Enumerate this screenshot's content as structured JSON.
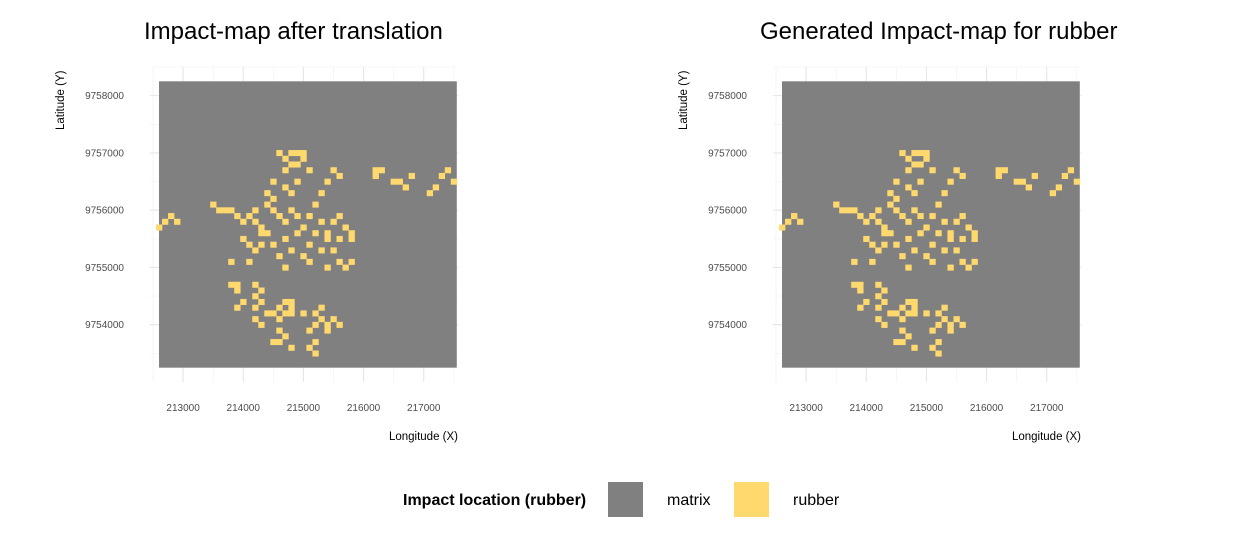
{
  "chart_data": [
    {
      "type": "heatmap",
      "title": "Impact-map after translation",
      "xlabel": "Longitude (X)",
      "ylabel": "Latitude (Y)",
      "xlim": [
        212450,
        217570
      ],
      "ylim": [
        9753000,
        9758500
      ],
      "x_ticks": [
        213000,
        214000,
        215000,
        216000,
        217000
      ],
      "y_ticks": [
        9754000,
        9755000,
        9756000,
        9757000,
        9758000
      ],
      "grid": true,
      "raster_extent": {
        "x": [
          212600,
          217550
        ],
        "y": [
          9753250,
          9758250
        ]
      },
      "cell_size": 100,
      "background_class": "matrix",
      "cells_class": "rubber",
      "cells": [
        [
          215000,
          9757000
        ],
        [
          214900,
          9757000
        ],
        [
          214800,
          9757000
        ],
        [
          214600,
          9757000
        ],
        [
          214700,
          9756900
        ],
        [
          215000,
          9756900
        ],
        [
          214800,
          9756800
        ],
        [
          214900,
          9756800
        ],
        [
          214700,
          9756700
        ],
        [
          215100,
          9756700
        ],
        [
          215500,
          9756700
        ],
        [
          215600,
          9756600
        ],
        [
          216200,
          9756700
        ],
        [
          216300,
          9756700
        ],
        [
          216200,
          9756600
        ],
        [
          216800,
          9756600
        ],
        [
          217400,
          9756700
        ],
        [
          217300,
          9756600
        ],
        [
          217500,
          9756500
        ],
        [
          216500,
          9756500
        ],
        [
          216700,
          9756400
        ],
        [
          217200,
          9756400
        ],
        [
          217100,
          9756300
        ],
        [
          216600,
          9756500
        ],
        [
          214500,
          9756500
        ],
        [
          214900,
          9756500
        ],
        [
          215400,
          9756500
        ],
        [
          215300,
          9756300
        ],
        [
          214400,
          9756300
        ],
        [
          214500,
          9756200
        ],
        [
          214700,
          9756400
        ],
        [
          214800,
          9756300
        ],
        [
          214400,
          9756100
        ],
        [
          214500,
          9756000
        ],
        [
          214600,
          9755900
        ],
        [
          214800,
          9756000
        ],
        [
          215200,
          9756100
        ],
        [
          215100,
          9755900
        ],
        [
          215600,
          9755900
        ],
        [
          215700,
          9755700
        ],
        [
          215800,
          9755600
        ],
        [
          215800,
          9755500
        ],
        [
          215600,
          9755500
        ],
        [
          215400,
          9755500
        ],
        [
          215200,
          9755600
        ],
        [
          215300,
          9755800
        ],
        [
          215000,
          9755700
        ],
        [
          214900,
          9755600
        ],
        [
          214700,
          9755500
        ],
        [
          214500,
          9755400
        ],
        [
          214300,
          9755400
        ],
        [
          214200,
          9755300
        ],
        [
          214100,
          9755100
        ],
        [
          214600,
          9755200
        ],
        [
          214800,
          9755300
        ],
        [
          215000,
          9755200
        ],
        [
          215500,
          9755300
        ],
        [
          215600,
          9755100
        ],
        [
          215800,
          9755100
        ],
        [
          215700,
          9755000
        ],
        [
          215400,
          9755000
        ],
        [
          215100,
          9755100
        ],
        [
          214700,
          9755000
        ],
        [
          214300,
          9755600
        ],
        [
          214200,
          9755800
        ],
        [
          214100,
          9755900
        ],
        [
          213800,
          9756000
        ],
        [
          213900,
          9755900
        ],
        [
          214000,
          9755800
        ],
        [
          214300,
          9755700
        ],
        [
          214400,
          9755600
        ],
        [
          214000,
          9755500
        ],
        [
          214100,
          9755400
        ],
        [
          213600,
          9756000
        ],
        [
          213500,
          9756100
        ],
        [
          212800,
          9755900
        ],
        [
          212900,
          9755800
        ],
        [
          212700,
          9755800
        ],
        [
          212600,
          9755700
        ],
        [
          213700,
          9756000
        ],
        [
          213800,
          9755100
        ],
        [
          214200,
          9756000
        ],
        [
          214900,
          9755900
        ],
        [
          215300,
          9755300
        ],
        [
          215500,
          9755800
        ],
        [
          214700,
          9755800
        ],
        [
          215100,
          9755400
        ],
        [
          215400,
          9755600
        ],
        [
          213800,
          9754700
        ],
        [
          213900,
          9754700
        ],
        [
          213900,
          9754600
        ],
        [
          214200,
          9754700
        ],
        [
          214300,
          9754600
        ],
        [
          214200,
          9754500
        ],
        [
          214300,
          9754400
        ],
        [
          214200,
          9754300
        ],
        [
          214000,
          9754400
        ],
        [
          213900,
          9754300
        ],
        [
          214700,
          9754400
        ],
        [
          214600,
          9754300
        ],
        [
          214800,
          9754400
        ],
        [
          214500,
          9754200
        ],
        [
          214600,
          9754100
        ],
        [
          214800,
          9754200
        ],
        [
          215000,
          9754200
        ],
        [
          215300,
          9754300
        ],
        [
          215200,
          9754200
        ],
        [
          215300,
          9754100
        ],
        [
          214300,
          9754000
        ],
        [
          214600,
          9753900
        ],
        [
          214700,
          9753800
        ],
        [
          214500,
          9753700
        ],
        [
          214800,
          9753600
        ],
        [
          215100,
          9753900
        ],
        [
          215200,
          9753700
        ],
        [
          215200,
          9753500
        ],
        [
          215100,
          9753600
        ],
        [
          215400,
          9753900
        ],
        [
          215400,
          9754000
        ],
        [
          215500,
          9754100
        ],
        [
          215600,
          9754000
        ],
        [
          214600,
          9753700
        ],
        [
          214400,
          9754200
        ],
        [
          214200,
          9754100
        ],
        [
          215200,
          9754000
        ],
        [
          214800,
          9754300
        ],
        [
          214700,
          9754200
        ]
      ]
    },
    {
      "type": "heatmap",
      "title": "Generated Impact-map for rubber",
      "xlabel": "Longitude (X)",
      "ylabel": "Latitude (Y)",
      "xlim": [
        212450,
        217570
      ],
      "ylim": [
        9753000,
        9758500
      ],
      "x_ticks": [
        213000,
        214000,
        215000,
        216000,
        217000
      ],
      "y_ticks": [
        9754000,
        9755000,
        9756000,
        9757000,
        9758000
      ],
      "grid": true,
      "raster_extent": {
        "x": [
          212600,
          217550
        ],
        "y": [
          9753250,
          9758250
        ]
      },
      "cell_size": 100,
      "background_class": "matrix",
      "cells_class": "rubber",
      "cells": [
        [
          215000,
          9757000
        ],
        [
          214900,
          9757000
        ],
        [
          214800,
          9757000
        ],
        [
          214600,
          9757000
        ],
        [
          214700,
          9756900
        ],
        [
          215000,
          9756900
        ],
        [
          214800,
          9756800
        ],
        [
          214900,
          9756800
        ],
        [
          214700,
          9756700
        ],
        [
          215100,
          9756700
        ],
        [
          215500,
          9756700
        ],
        [
          215600,
          9756600
        ],
        [
          216200,
          9756700
        ],
        [
          216300,
          9756700
        ],
        [
          216200,
          9756600
        ],
        [
          216800,
          9756600
        ],
        [
          217400,
          9756700
        ],
        [
          217300,
          9756600
        ],
        [
          217500,
          9756500
        ],
        [
          216500,
          9756500
        ],
        [
          216700,
          9756400
        ],
        [
          217200,
          9756400
        ],
        [
          217100,
          9756300
        ],
        [
          216600,
          9756500
        ],
        [
          214500,
          9756500
        ],
        [
          214900,
          9756500
        ],
        [
          215400,
          9756500
        ],
        [
          215300,
          9756300
        ],
        [
          214400,
          9756300
        ],
        [
          214500,
          9756200
        ],
        [
          214700,
          9756400
        ],
        [
          214800,
          9756300
        ],
        [
          214400,
          9756100
        ],
        [
          214500,
          9756000
        ],
        [
          214600,
          9755900
        ],
        [
          214800,
          9756000
        ],
        [
          215200,
          9756100
        ],
        [
          215100,
          9755900
        ],
        [
          215600,
          9755900
        ],
        [
          215700,
          9755700
        ],
        [
          215800,
          9755600
        ],
        [
          215800,
          9755500
        ],
        [
          215600,
          9755500
        ],
        [
          215400,
          9755500
        ],
        [
          215200,
          9755600
        ],
        [
          215300,
          9755800
        ],
        [
          215000,
          9755700
        ],
        [
          214900,
          9755600
        ],
        [
          214700,
          9755500
        ],
        [
          214500,
          9755400
        ],
        [
          214300,
          9755400
        ],
        [
          214200,
          9755300
        ],
        [
          214100,
          9755100
        ],
        [
          214600,
          9755200
        ],
        [
          214800,
          9755300
        ],
        [
          215000,
          9755200
        ],
        [
          215500,
          9755300
        ],
        [
          215600,
          9755100
        ],
        [
          215800,
          9755100
        ],
        [
          215700,
          9755000
        ],
        [
          215400,
          9755000
        ],
        [
          215100,
          9755100
        ],
        [
          214700,
          9755000
        ],
        [
          214300,
          9755600
        ],
        [
          214200,
          9755800
        ],
        [
          214100,
          9755900
        ],
        [
          213800,
          9756000
        ],
        [
          213900,
          9755900
        ],
        [
          214000,
          9755800
        ],
        [
          214300,
          9755700
        ],
        [
          214400,
          9755600
        ],
        [
          214000,
          9755500
        ],
        [
          214100,
          9755400
        ],
        [
          213600,
          9756000
        ],
        [
          213500,
          9756100
        ],
        [
          212800,
          9755900
        ],
        [
          212900,
          9755800
        ],
        [
          212700,
          9755800
        ],
        [
          212600,
          9755700
        ],
        [
          213700,
          9756000
        ],
        [
          213800,
          9755100
        ],
        [
          214200,
          9756000
        ],
        [
          214900,
          9755900
        ],
        [
          215300,
          9755300
        ],
        [
          215500,
          9755800
        ],
        [
          214700,
          9755800
        ],
        [
          215100,
          9755400
        ],
        [
          215400,
          9755600
        ],
        [
          213800,
          9754700
        ],
        [
          213900,
          9754700
        ],
        [
          213900,
          9754600
        ],
        [
          214200,
          9754700
        ],
        [
          214300,
          9754600
        ],
        [
          214200,
          9754500
        ],
        [
          214300,
          9754400
        ],
        [
          214200,
          9754300
        ],
        [
          214000,
          9754400
        ],
        [
          213900,
          9754300
        ],
        [
          214700,
          9754400
        ],
        [
          214600,
          9754300
        ],
        [
          214800,
          9754400
        ],
        [
          214500,
          9754200
        ],
        [
          214600,
          9754100
        ],
        [
          214800,
          9754200
        ],
        [
          215000,
          9754200
        ],
        [
          215300,
          9754300
        ],
        [
          215200,
          9754200
        ],
        [
          215300,
          9754100
        ],
        [
          214300,
          9754000
        ],
        [
          214600,
          9753900
        ],
        [
          214700,
          9753800
        ],
        [
          214500,
          9753700
        ],
        [
          214800,
          9753600
        ],
        [
          215100,
          9753900
        ],
        [
          215200,
          9753700
        ],
        [
          215200,
          9753500
        ],
        [
          215100,
          9753600
        ],
        [
          215400,
          9753900
        ],
        [
          215400,
          9754000
        ],
        [
          215500,
          9754100
        ],
        [
          215600,
          9754000
        ],
        [
          214600,
          9753700
        ],
        [
          214400,
          9754200
        ],
        [
          214200,
          9754100
        ],
        [
          215200,
          9754000
        ],
        [
          214800,
          9754300
        ],
        [
          214700,
          9754200
        ]
      ]
    }
  ],
  "legend": {
    "title": "Impact location (rubber)",
    "items": [
      {
        "label": "matrix",
        "color": "#808080"
      },
      {
        "label": "rubber",
        "color": "#FFD86E"
      }
    ]
  },
  "colors": {
    "matrix": "#808080",
    "rubber": "#FFD86E"
  }
}
